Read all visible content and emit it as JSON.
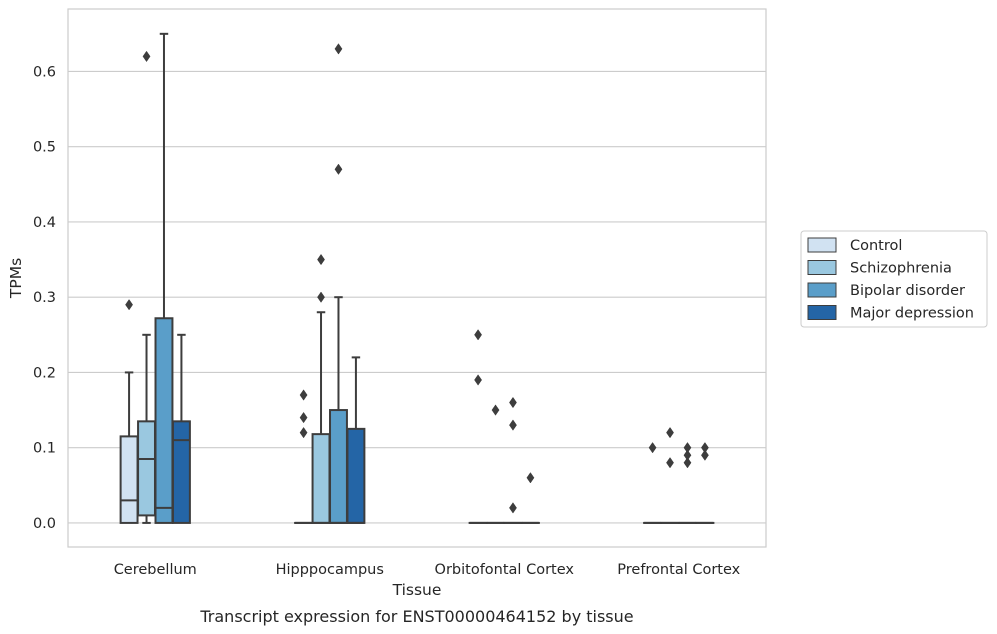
{
  "caption": "Transcript expression for ENST00000464152 by tissue",
  "chart_data": {
    "type": "box",
    "xlabel": "Tissue",
    "ylabel": "TPMs",
    "ylim": [
      -0.032,
      0.683
    ],
    "yticks": [
      "0.0",
      "0.1",
      "0.2",
      "0.3",
      "0.4",
      "0.5",
      "0.6"
    ],
    "grid": true,
    "legend_placement": "right",
    "categories": [
      "Cerebellum",
      "Hipppocampus",
      "Orbitofontal Cortex",
      "Prefrontal Cortex"
    ],
    "series": [
      {
        "name": "Control",
        "color": "#d1e2f2",
        "boxes": [
          {
            "q1": 0.0,
            "median": 0.03,
            "q3": 0.115,
            "whisker_low": 0.0,
            "whisker_high": 0.2,
            "outliers": [
              0.29
            ]
          },
          {
            "q1": 0.0,
            "median": 0.0,
            "q3": 0.0,
            "whisker_low": 0.0,
            "whisker_high": 0.0,
            "outliers": [
              0.12,
              0.14,
              0.17
            ]
          },
          {
            "q1": 0.0,
            "median": 0.0,
            "q3": 0.0,
            "whisker_low": 0.0,
            "whisker_high": 0.0,
            "outliers": [
              0.19,
              0.25
            ]
          },
          {
            "q1": 0.0,
            "median": 0.0,
            "q3": 0.0,
            "whisker_low": 0.0,
            "whisker_high": 0.0,
            "outliers": [
              0.1
            ]
          }
        ]
      },
      {
        "name": "Schizophrenia",
        "color": "#9ac8e0",
        "boxes": [
          {
            "q1": 0.01,
            "median": 0.085,
            "q3": 0.135,
            "whisker_low": 0.0,
            "whisker_high": 0.25,
            "outliers": [
              0.62
            ]
          },
          {
            "q1": 0.0,
            "median": 0.0,
            "q3": 0.118,
            "whisker_low": 0.0,
            "whisker_high": 0.28,
            "outliers": [
              0.3,
              0.35
            ]
          },
          {
            "q1": 0.0,
            "median": 0.0,
            "q3": 0.0,
            "whisker_low": 0.0,
            "whisker_high": 0.0,
            "outliers": [
              0.15
            ]
          },
          {
            "q1": 0.0,
            "median": 0.0,
            "q3": 0.0,
            "whisker_low": 0.0,
            "whisker_high": 0.0,
            "outliers": [
              0.08,
              0.12
            ]
          }
        ]
      },
      {
        "name": "Bipolar disorder",
        "color": "#5a9ec9",
        "boxes": [
          {
            "q1": 0.0,
            "median": 0.02,
            "q3": 0.272,
            "whisker_low": 0.0,
            "whisker_high": 0.65,
            "outliers": []
          },
          {
            "q1": 0.0,
            "median": 0.0,
            "q3": 0.15,
            "whisker_low": 0.0,
            "whisker_high": 0.3,
            "outliers": [
              0.47,
              0.63
            ]
          },
          {
            "q1": 0.0,
            "median": 0.0,
            "q3": 0.0,
            "whisker_low": 0.0,
            "whisker_high": 0.0,
            "outliers": [
              0.02,
              0.13,
              0.16
            ]
          },
          {
            "q1": 0.0,
            "median": 0.0,
            "q3": 0.0,
            "whisker_low": 0.0,
            "whisker_high": 0.0,
            "outliers": [
              0.08,
              0.09,
              0.1
            ]
          }
        ]
      },
      {
        "name": "Major depression",
        "color": "#2465a6",
        "boxes": [
          {
            "q1": 0.0,
            "median": 0.11,
            "q3": 0.135,
            "whisker_low": 0.0,
            "whisker_high": 0.25,
            "outliers": []
          },
          {
            "q1": 0.0,
            "median": 0.0,
            "q3": 0.125,
            "whisker_low": 0.0,
            "whisker_high": 0.22,
            "outliers": []
          },
          {
            "q1": 0.0,
            "median": 0.0,
            "q3": 0.0,
            "whisker_low": 0.0,
            "whisker_high": 0.0,
            "outliers": [
              0.06
            ]
          },
          {
            "q1": 0.0,
            "median": 0.0,
            "q3": 0.0,
            "whisker_low": 0.0,
            "whisker_high": 0.0,
            "outliers": [
              0.09,
              0.1
            ]
          }
        ]
      }
    ]
  }
}
